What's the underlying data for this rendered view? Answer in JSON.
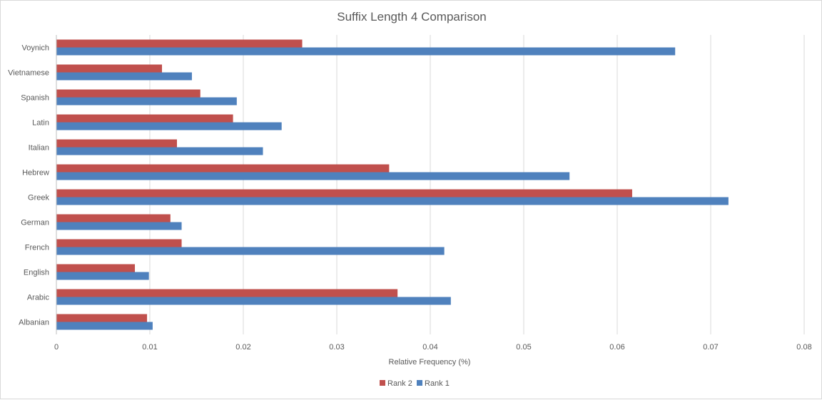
{
  "chart_data": {
    "type": "bar",
    "orientation": "horizontal",
    "title": "Suffix Length 4 Comparison",
    "xlabel": "Relative Frequency (%)",
    "ylabel": "",
    "xlim": [
      0,
      0.08
    ],
    "x_ticks": [
      "0",
      "0.01",
      "0.02",
      "0.03",
      "0.04",
      "0.05",
      "0.06",
      "0.07",
      "0.08"
    ],
    "grid": true,
    "legend_position": "bottom",
    "categories": [
      "Albanian",
      "Arabic",
      "English",
      "French",
      "German",
      "Greek",
      "Hebrew",
      "Italian",
      "Latin",
      "Spanish",
      "Vietnamese",
      "Voynich"
    ],
    "series": [
      {
        "name": "Rank 1",
        "color": "#4f81bd",
        "values": [
          0.0103,
          0.0422,
          0.0099,
          0.0415,
          0.0134,
          0.0719,
          0.0549,
          0.0221,
          0.0241,
          0.0193,
          0.0145,
          0.0662
        ]
      },
      {
        "name": "Rank 2",
        "color": "#c0504d",
        "values": [
          0.0097,
          0.0365,
          0.0084,
          0.0134,
          0.0122,
          0.0616,
          0.0356,
          0.0129,
          0.0189,
          0.0154,
          0.0113,
          0.0263
        ]
      }
    ],
    "legend_order": [
      "Rank 2",
      "Rank 1"
    ]
  }
}
